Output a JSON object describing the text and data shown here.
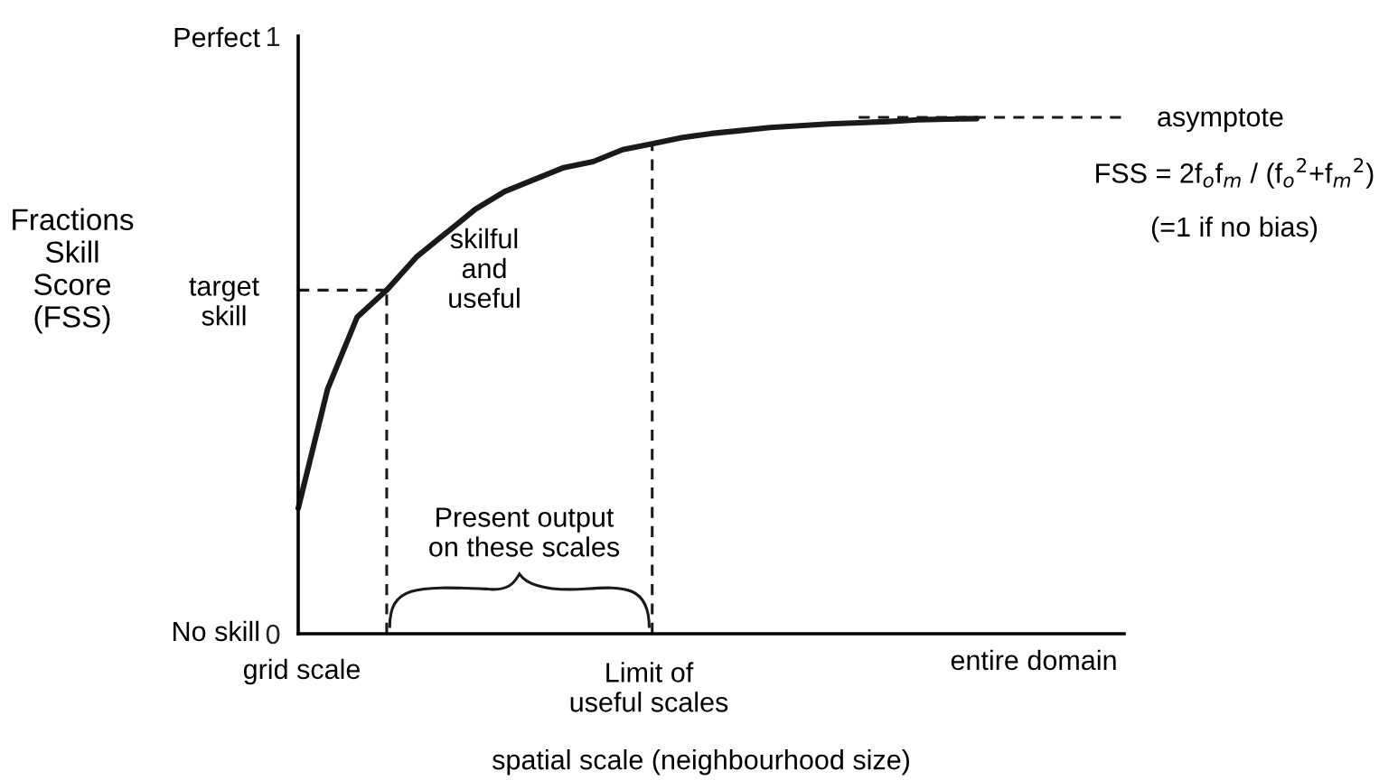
{
  "chart_data": {
    "type": "line",
    "xlabel": "spatial scale (neighbourhood size)",
    "categories": [
      null,
      null,
      null,
      null,
      null,
      null,
      null,
      null,
      null,
      null,
      null,
      null,
      null,
      null,
      null,
      null,
      null,
      null,
      null,
      null,
      null,
      null,
      null,
      null,
      null,
      null,
      null,
      null,
      null
    ],
    "ylim": [
      0,
      1
    ],
    "yticks": [
      0,
      1
    ],
    "grid": false,
    "legend": false,
    "marker": "none",
    "series": [
      {
        "color": "#1a1a1a",
        "line_style": "solid",
        "values": [
          0.21,
          0.41,
          0.53,
          0.575,
          0.63,
          0.67,
          0.71,
          0.74,
          0.76,
          0.78,
          0.79,
          0.81,
          0.82,
          0.83,
          0.837,
          0.842,
          0.847,
          0.85,
          0.853,
          0.855,
          0.857,
          0.86,
          0.861,
          0.862,
          null,
          null,
          null,
          null,
          null
        ]
      },
      {
        "color": "#1a1a1a",
        "line_style": "dashed",
        "values": [
          0.575,
          0.575,
          0.575,
          0.575,
          null,
          null,
          null,
          null,
          null,
          null,
          null,
          null,
          null,
          null,
          null,
          null,
          null,
          null,
          null,
          null,
          null,
          null,
          null,
          null,
          null,
          null,
          null,
          null,
          null
        ]
      },
      {
        "color": "#1a1a1a",
        "line_style": "dashed",
        "values": [
          null,
          null,
          null,
          null,
          null,
          null,
          null,
          null,
          null,
          null,
          null,
          null,
          null,
          null,
          null,
          null,
          null,
          null,
          null,
          0.864,
          0.864,
          0.864,
          0.864,
          0.864,
          0.864,
          0.864,
          0.864,
          0.864,
          0.864
        ]
      }
    ],
    "annotations": [
      "target\nskill",
      "skilful\nand\nuseful",
      "Present output\non these scales",
      "asymptote",
      "FSS = 2f$_{o}$f$_{m}$ / (f$_{o}$$^{2}$+f$_{m}$$^{2}$)",
      "(=1 if no bias)",
      "Perfect",
      "No skill",
      "grid scale",
      "Limit of\nuseful scales",
      "entire domain",
      "Fractions\nSkill\nScore\n(FSS)"
    ]
  }
}
